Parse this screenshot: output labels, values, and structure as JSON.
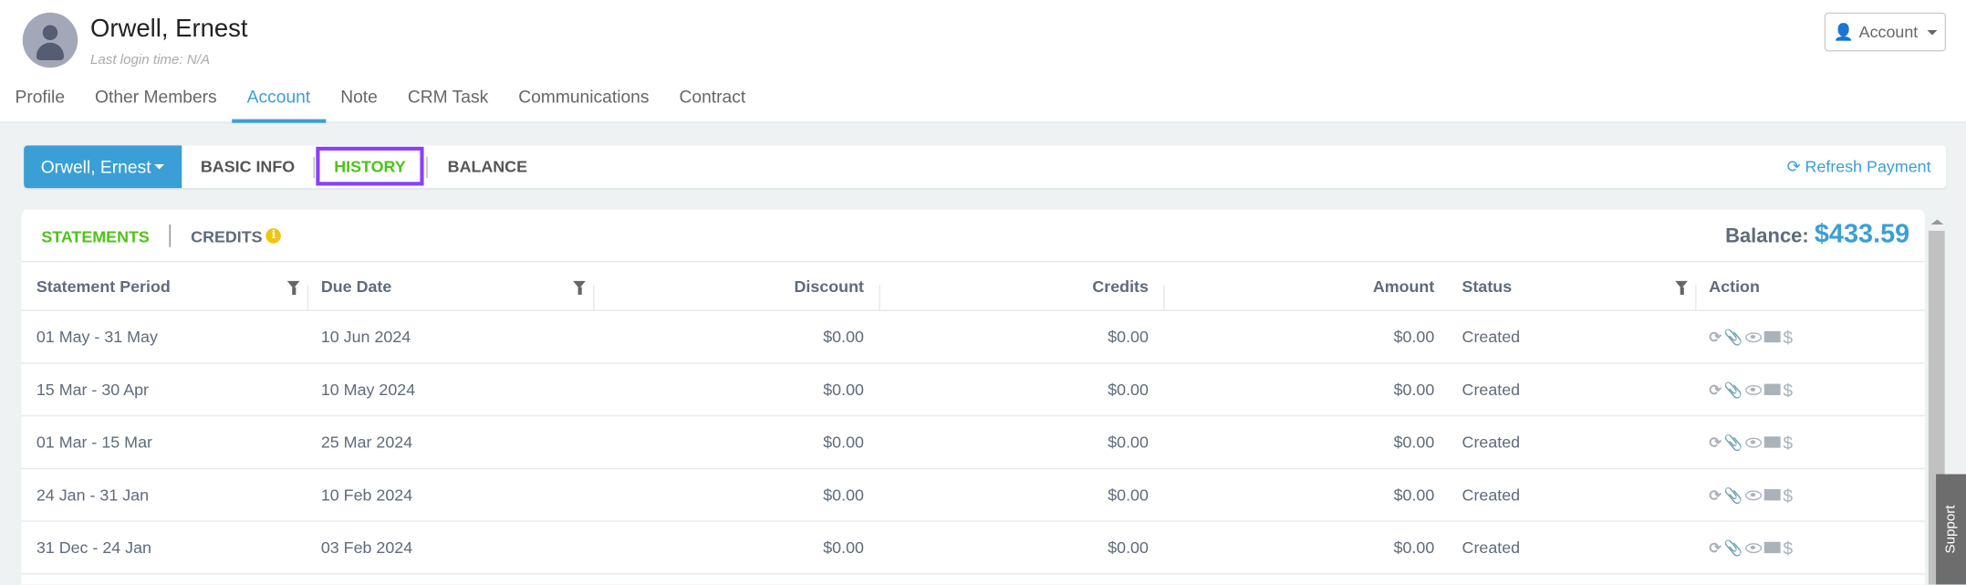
{
  "header": {
    "name": "Orwell, Ernest",
    "last_login": "Last login time: N/A",
    "account_button": "Account"
  },
  "nav": {
    "tabs": [
      "Profile",
      "Other Members",
      "Account",
      "Note",
      "CRM Task",
      "Communications",
      "Contract"
    ],
    "active": "Account"
  },
  "toolbar": {
    "member": "Orwell, Ernest",
    "tabs": [
      "BASIC INFO",
      "HISTORY",
      "BALANCE"
    ],
    "active": "HISTORY",
    "refresh": "Refresh Payment"
  },
  "panel": {
    "subtabs": [
      "STATEMENTS",
      "CREDITS"
    ],
    "active": "STATEMENTS",
    "balance_label": "Balance:",
    "balance_value": "$433.59"
  },
  "table": {
    "headers": [
      "Statement Period",
      "Due Date",
      "Discount",
      "Credits",
      "Amount",
      "Status",
      "Action"
    ],
    "rows": [
      [
        "01 May - 31 May",
        "10 Jun 2024",
        "$0.00",
        "$0.00",
        "$0.00",
        "Created"
      ],
      [
        "15 Mar - 30 Apr",
        "10 May 2024",
        "$0.00",
        "$0.00",
        "$0.00",
        "Created"
      ],
      [
        "01 Mar - 15 Mar",
        "25 Mar 2024",
        "$0.00",
        "$0.00",
        "$0.00",
        "Created"
      ],
      [
        "24 Jan - 31 Jan",
        "10 Feb 2024",
        "$0.00",
        "$0.00",
        "$0.00",
        "Created"
      ],
      [
        "31 Dec - 24 Jan",
        "03 Feb 2024",
        "$0.00",
        "$0.00",
        "$0.00",
        "Created"
      ]
    ],
    "action_icons": [
      "refresh-icon",
      "paperclip-icon",
      "eye-icon",
      "envelope-icon",
      "dollar-icon"
    ]
  },
  "support": "Support",
  "colors": {
    "accent": "#3a9fd5",
    "active_green": "#4cc417",
    "highlight": "#8a3ffc",
    "info": "#f1c40f"
  }
}
